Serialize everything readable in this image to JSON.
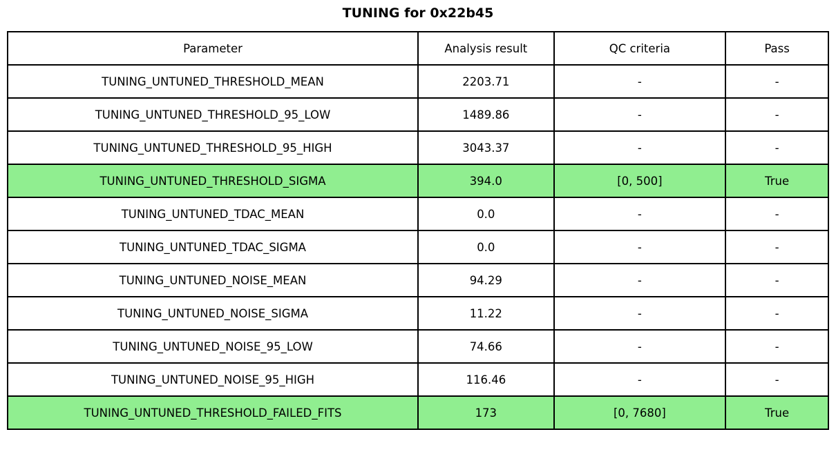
{
  "title": "TUNING for 0x22b45",
  "colors": {
    "highlight_green": "#90ee90",
    "border": "#000000",
    "background": "#ffffff",
    "text": "#000000"
  },
  "table": {
    "headers": [
      "Parameter",
      "Analysis result",
      "QC criteria",
      "Pass"
    ],
    "column_widths_pct": [
      50.0,
      16.55,
      20.92,
      12.53
    ],
    "rows": [
      {
        "cells": [
          "TUNING_UNTUNED_THRESHOLD_MEAN",
          "2203.71",
          "-",
          "-"
        ],
        "highlight": false
      },
      {
        "cells": [
          "TUNING_UNTUNED_THRESHOLD_95_LOW",
          "1489.86",
          "-",
          "-"
        ],
        "highlight": false
      },
      {
        "cells": [
          "TUNING_UNTUNED_THRESHOLD_95_HIGH",
          "3043.37",
          "-",
          "-"
        ],
        "highlight": false
      },
      {
        "cells": [
          "TUNING_UNTUNED_THRESHOLD_SIGMA",
          "394.0",
          "[0, 500]",
          "True"
        ],
        "highlight": true
      },
      {
        "cells": [
          "TUNING_UNTUNED_TDAC_MEAN",
          "0.0",
          "-",
          "-"
        ],
        "highlight": false
      },
      {
        "cells": [
          "TUNING_UNTUNED_TDAC_SIGMA",
          "0.0",
          "-",
          "-"
        ],
        "highlight": false
      },
      {
        "cells": [
          "TUNING_UNTUNED_NOISE_MEAN",
          "94.29",
          "-",
          "-"
        ],
        "highlight": false
      },
      {
        "cells": [
          "TUNING_UNTUNED_NOISE_SIGMA",
          "11.22",
          "-",
          "-"
        ],
        "highlight": false
      },
      {
        "cells": [
          "TUNING_UNTUNED_NOISE_95_LOW",
          "74.66",
          "-",
          "-"
        ],
        "highlight": false
      },
      {
        "cells": [
          "TUNING_UNTUNED_NOISE_95_HIGH",
          "116.46",
          "-",
          "-"
        ],
        "highlight": false
      },
      {
        "cells": [
          "TUNING_UNTUNED_THRESHOLD_FAILED_FITS",
          "173",
          "[0, 7680]",
          "True"
        ],
        "highlight": true
      }
    ]
  },
  "chart_data": {
    "type": "table",
    "title": "TUNING for 0x22b45",
    "columns": [
      "Parameter",
      "Analysis result",
      "QC criteria",
      "Pass"
    ],
    "rows": [
      [
        "TUNING_UNTUNED_THRESHOLD_MEAN",
        2203.71,
        null,
        null
      ],
      [
        "TUNING_UNTUNED_THRESHOLD_95_LOW",
        1489.86,
        null,
        null
      ],
      [
        "TUNING_UNTUNED_THRESHOLD_95_HIGH",
        3043.37,
        null,
        null
      ],
      [
        "TUNING_UNTUNED_THRESHOLD_SIGMA",
        394.0,
        "[0, 500]",
        true
      ],
      [
        "TUNING_UNTUNED_TDAC_MEAN",
        0.0,
        null,
        null
      ],
      [
        "TUNING_UNTUNED_TDAC_SIGMA",
        0.0,
        null,
        null
      ],
      [
        "TUNING_UNTUNED_NOISE_MEAN",
        94.29,
        null,
        null
      ],
      [
        "TUNING_UNTUNED_NOISE_SIGMA",
        11.22,
        null,
        null
      ],
      [
        "TUNING_UNTUNED_NOISE_95_LOW",
        74.66,
        null,
        null
      ],
      [
        "TUNING_UNTUNED_NOISE_95_HIGH",
        116.46,
        null,
        null
      ],
      [
        "TUNING_UNTUNED_THRESHOLD_FAILED_FITS",
        173,
        "[0, 7680]",
        true
      ]
    ],
    "highlighted_row_indices": [
      3,
      10
    ],
    "layout_hints": {
      "title_position": "top-center",
      "highlight_color": "#90ee90",
      "grid": "all-cell-borders"
    }
  }
}
